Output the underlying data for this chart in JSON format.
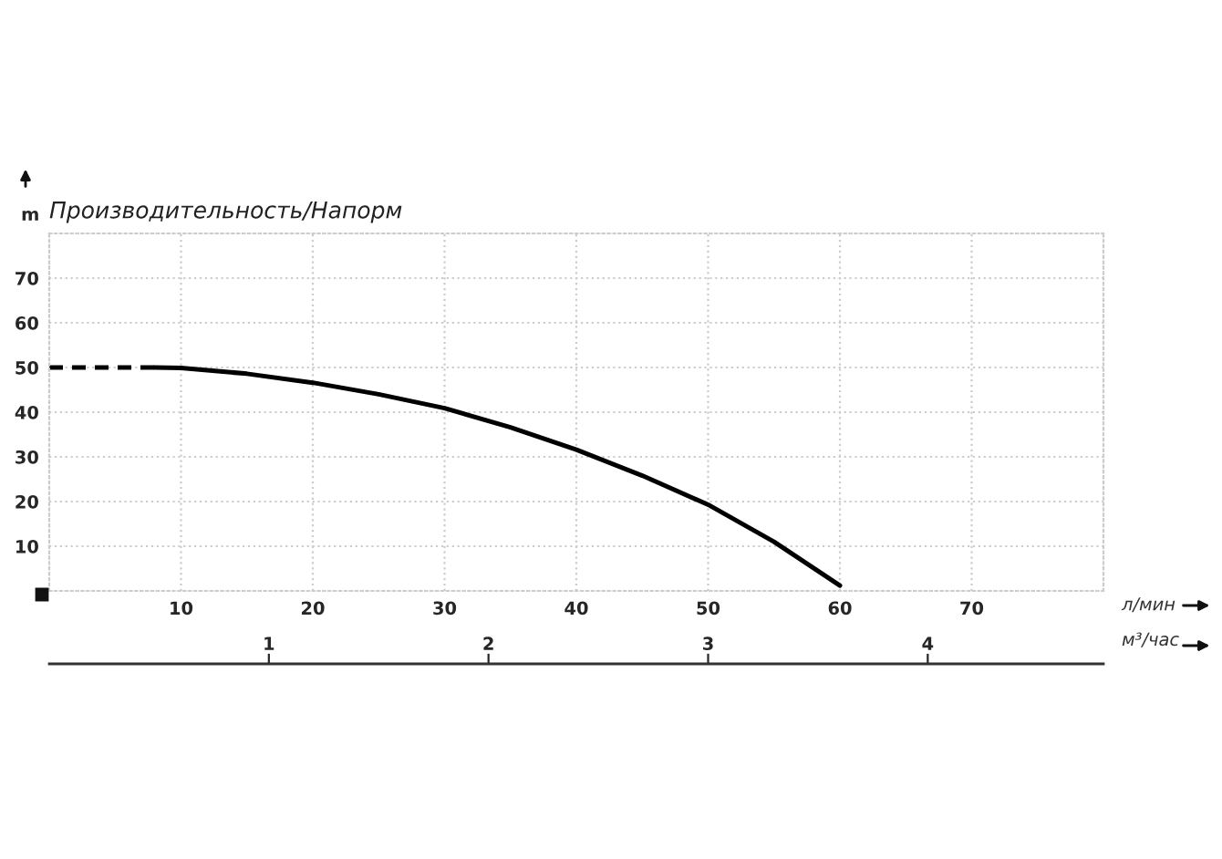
{
  "chart_data": {
    "type": "line",
    "title": "Производительность/Напорм",
    "xlabel": "л/мин",
    "ylabel": "m",
    "x2label": "м³/час",
    "xlim": [
      0,
      80
    ],
    "xticks": [
      10,
      20,
      30,
      40,
      50,
      60,
      70
    ],
    "ylim": [
      0,
      80
    ],
    "yticks": [
      10,
      20,
      30,
      40,
      50,
      60,
      70
    ],
    "x2lim": [
      0,
      4.8
    ],
    "x2ticks": [
      1,
      2,
      3,
      4
    ],
    "grid": true,
    "legend": false,
    "series": [
      {
        "color": "#000000",
        "line_style": "dashed",
        "x": [
          0,
          8
        ],
        "values": [
          50,
          50
        ]
      },
      {
        "color": "#000000",
        "line_style": "solid",
        "x": [
          8,
          10,
          15,
          20,
          25,
          30,
          35,
          40,
          45,
          50,
          55,
          60
        ],
        "values": [
          50,
          49.9,
          48.6,
          46.6,
          44,
          40.9,
          36.6,
          31.6,
          25.8,
          19.3,
          11,
          1.2
        ]
      }
    ]
  }
}
